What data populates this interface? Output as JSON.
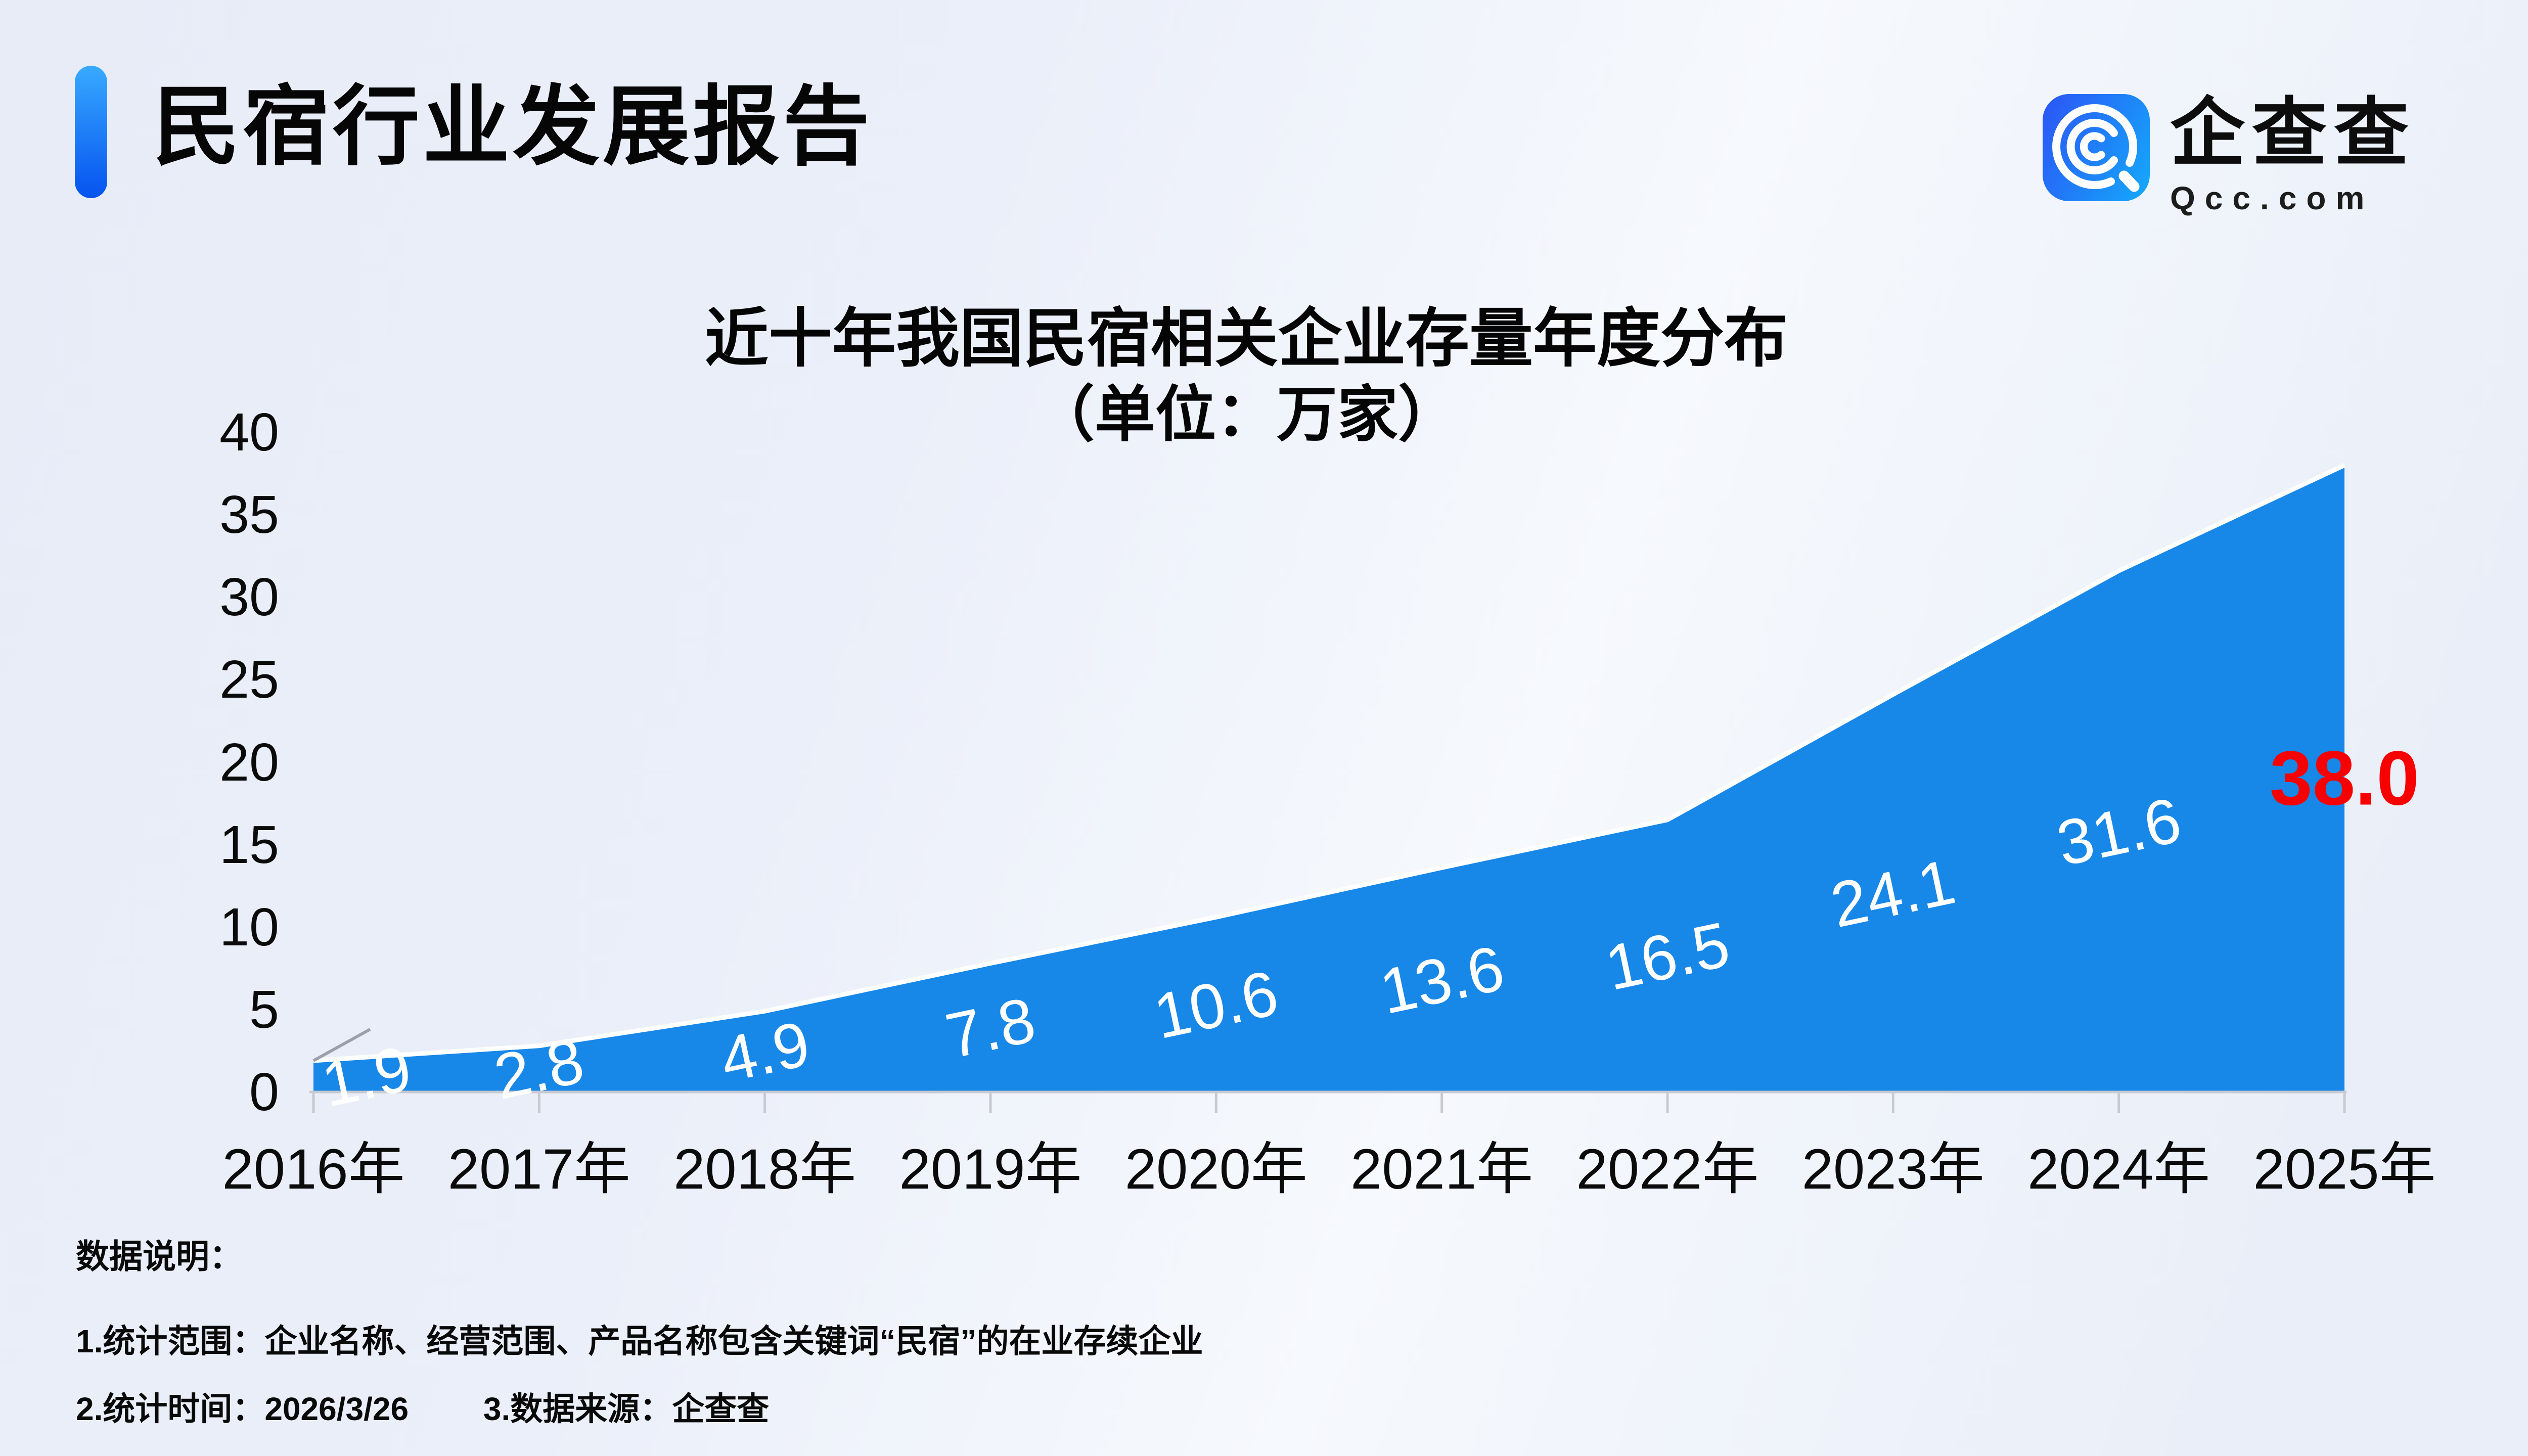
{
  "header": {
    "title": "民宿行业发展报告"
  },
  "logo": {
    "name": "企查查",
    "domain": "Qcc.com",
    "icon": "qcc-spiral-magnifier-icon",
    "icon_colors": [
      "#2a5bf6",
      "#16a3fa"
    ]
  },
  "chart_data": {
    "type": "area",
    "title": "近十年我国民宿相关企业存量年度分布",
    "subtitle": "（单位：万家）",
    "categories": [
      "2016年",
      "2017年",
      "2018年",
      "2019年",
      "2020年",
      "2021年",
      "2022年",
      "2023年",
      "2024年",
      "2025年"
    ],
    "values": [
      1.9,
      2.8,
      4.9,
      7.8,
      10.6,
      13.6,
      16.5,
      24.1,
      31.6,
      38.0
    ],
    "xlabel": "",
    "ylabel": "",
    "ylim": [
      0,
      40
    ],
    "yticks": [
      0,
      5,
      10,
      15,
      20,
      25,
      30,
      35,
      40
    ],
    "grid": false,
    "legend": false,
    "area_color": "#1787e8",
    "line_color": "#ffffff",
    "label_color": "#ffffff",
    "highlight_last_label_color": "#f80000"
  },
  "notes": {
    "heading": "数据说明：",
    "line1": "1.统计范围：企业名称、经营范围、产品名称包含关键词“民宿”的在业存续企业",
    "line2_time": "2.统计时间：2026/3/26",
    "line2_source": "3.数据来源：企查查"
  }
}
